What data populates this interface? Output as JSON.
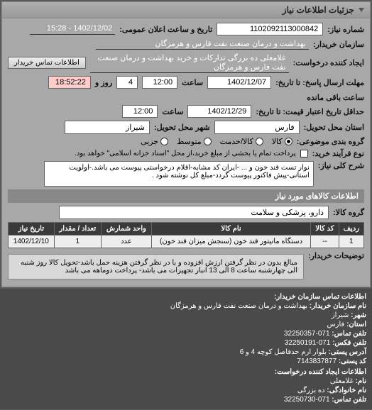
{
  "header": {
    "title": "جزئیات اطلاعات نیاز"
  },
  "need": {
    "number_label": "شماره نیاز:",
    "number": "1102092113000842",
    "public_datetime_label": "تاریخ و ساعت اعلان عمومی:",
    "public_datetime": "1402/12/02 - 15:28",
    "buyer_label": "سازمان خریدار:",
    "buyer": "بهداشت و درمان صنعت نفت فارس و هرمزگان",
    "requester_label": "ایجاد کننده درخواست:",
    "requester": "غلامعلی ده بزرگی تدارکات و خرید بهداشت و درمان صنعت نفت فارس و هرمزگان",
    "contact_btn": "اطلاعات تماس خریدار",
    "deadline_send_label": "مهلت ارسال پاسخ: تا تاریخ:",
    "deadline_send_date": "1402/12/07",
    "time_label": "ساعت",
    "deadline_send_time": "12:00",
    "days_label": "روز و",
    "days_remaining": "4",
    "hours_remaining": "18:52:22",
    "remaining_suffix": "ساعت باقی مانده",
    "validity_label": "حداقل تاریخ اعتبار قیمت: تا تاریخ:",
    "validity_date": "1402/12/29",
    "validity_time": "12:00",
    "province_label": "استان محل تحویل:",
    "province": "فارس",
    "city_label": "شهر محل تحویل:",
    "city": "شیراز",
    "group_label": "گروه بندی موضوعی:",
    "group_options": {
      "goods": "کالا",
      "service_goods": "کالا/خدمت",
      "small": "متوسط",
      "all": "جزیی"
    },
    "buy_method_label": "نوع فرآیند خرید:",
    "buy_method_text": "پرداخت تمام یا بخشی از مبلغ خرید،از محل \"اسناد خزانه اسلامی\" خواهد بود.",
    "desc_label": "شرح کلی نیاز:",
    "desc_text": "نوار تست قند خون و ... -ایران کد مشابه-اقلام درخواستی پیوست می باشد.-اولویت استانی-پیش فاکتور پیوست گردد-مبلغ کل نوشته شود ."
  },
  "goods": {
    "title": "اطلاعات کالاهای مورد نیاز",
    "group_label": "گروه کالا:",
    "group_value": "دارو، پزشکی و سلامت",
    "columns": [
      "ردیف",
      "کد کالا",
      "نام کالا",
      "واحد شمارش",
      "تعداد / مقدار",
      "تاریخ نیاز"
    ],
    "rows": [
      [
        "1",
        "--",
        "دستگاه مانیتور قند خون (سنجش میزان قند خون)",
        "عدد",
        "1",
        "1402/12/10"
      ]
    ],
    "note_label": "توضیحات خریدار:",
    "note_text": "مبالغ بدون در نظر گرفتن ارزش افزوده و با در نظر گرفتن هزینه حمل باشد-تحویل کالا روز شنبه الی چهارشنبه ساعت 8 الی 13 انبار تجهیزات می باشد- پرداخت دوماهه می باشد"
  },
  "contact_buyer": {
    "title": "اطلاعات تماس سازمان خریدار:",
    "org_label": "نام سازمان خریدار:",
    "org": "بهداشت و درمان صنعت نفت فارس و هرمزگان",
    "city_label": "شهر:",
    "city": "شیراز",
    "province_label": "استان:",
    "province": "فارس",
    "phone_label": "تلفن تماس:",
    "phone": "071-32250357",
    "fax_label": "تلفن فکس:",
    "fax": "071-32250191",
    "address_label": "آدرس پستی:",
    "address": "بلوار ارم حدفاصل کوچه 4 و 6",
    "postal_label": "کد پستی:",
    "postal": "7143837877"
  },
  "contact_requester": {
    "title": "اطلاعات ایجاد کننده درخواست:",
    "name_label": "نام:",
    "name": "غلامعلی",
    "family_label": "نام خانوادگی:",
    "family": "ده بزرگی",
    "phone_label": "تلفن تماس:",
    "phone": "071-32250730"
  },
  "colors": {
    "hours_box_bg": "#ffcccc"
  }
}
